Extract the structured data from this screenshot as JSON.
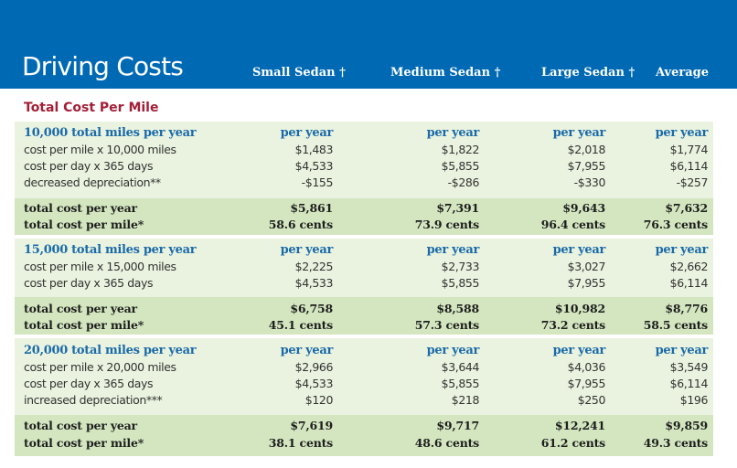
{
  "header": {
    "title": "Driving Costs",
    "columns": [
      "Small Sedan †",
      "Medium Sedan †",
      "Large Sedan †",
      "Average"
    ]
  },
  "section_title": "Total Cost Per Mile",
  "sections": [
    {
      "heading": {
        "label": "10,000 total miles per year",
        "values": [
          "per year",
          "per year",
          "per year",
          "per year"
        ]
      },
      "rows": [
        {
          "label": "cost per mile x 10,000 miles",
          "values": [
            "$1,483",
            "$1,822",
            "$2,018",
            "$1,774"
          ]
        },
        {
          "label": "cost per day x 365 days",
          "values": [
            "$4,533",
            "$5,855",
            "$7,955",
            "$6,114"
          ]
        },
        {
          "label": "decreased depreciation**",
          "values": [
            "-$155",
            "-$286",
            "-$330",
            "-$257"
          ]
        }
      ],
      "totals": [
        {
          "label": "total cost per year",
          "values": [
            "$5,861",
            "$7,391",
            "$9,643",
            "$7,632"
          ]
        },
        {
          "label": "total cost per mile*",
          "values": [
            "58.6 cents",
            "73.9 cents",
            "96.4 cents",
            "76.3 cents"
          ]
        }
      ]
    },
    {
      "heading": {
        "label": "15,000 total miles per year",
        "values": [
          "per year",
          "per year",
          "per year",
          "per year"
        ]
      },
      "rows": [
        {
          "label": "cost per mile x 15,000 miles",
          "values": [
            "$2,225",
            "$2,733",
            "$3,027",
            "$2,662"
          ]
        },
        {
          "label": "cost per day x 365 days",
          "values": [
            "$4,533",
            "$5,855",
            "$7,955",
            "$6,114"
          ]
        }
      ],
      "totals": [
        {
          "label": "total cost per year",
          "values": [
            "$6,758",
            "$8,588",
            "$10,982",
            "$8,776"
          ]
        },
        {
          "label": "total cost per mile*",
          "values": [
            "45.1 cents",
            "57.3 cents",
            "73.2 cents",
            "58.5 cents"
          ]
        }
      ]
    },
    {
      "heading": {
        "label": "20,000 total miles per year",
        "values": [
          "per year",
          "per year",
          "per year",
          "per year"
        ]
      },
      "rows": [
        {
          "label": "cost per mile x 20,000 miles",
          "values": [
            "$2,966",
            "$3,644",
            "$4,036",
            "$3,549"
          ]
        },
        {
          "label": "cost per day x 365 days",
          "values": [
            "$4,533",
            "$5,855",
            "$7,955",
            "$6,114"
          ]
        },
        {
          "label": "increased depreciation***",
          "values": [
            "$120",
            "$218",
            "$250",
            "$196"
          ]
        }
      ],
      "totals": [
        {
          "label": "total cost per year",
          "values": [
            "$7,619",
            "$9,717",
            "$12,241",
            "$9,859"
          ]
        },
        {
          "label": "total cost per mile*",
          "values": [
            "38.1 cents",
            "48.6 cents",
            "61.2 cents",
            "49.3 cents"
          ]
        }
      ]
    }
  ]
}
